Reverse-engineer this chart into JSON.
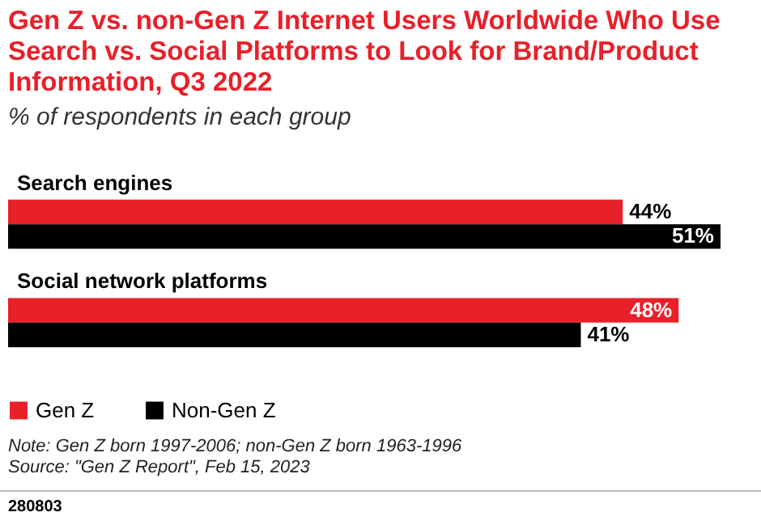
{
  "chart_data": {
    "type": "bar",
    "orientation": "horizontal",
    "title": "Gen Z vs. non-Gen Z Internet Users Worldwide Who Use Search vs. Social Platforms to Look for Brand/Product Information, Q3 2022",
    "subtitle": "% of respondents in each group",
    "categories": [
      "Search engines",
      "Social network platforms"
    ],
    "series": [
      {
        "name": "Gen Z",
        "color": "#e8202a",
        "values": [
          44,
          48
        ],
        "value_labels": [
          "44%",
          "48%"
        ]
      },
      {
        "name": "Non-Gen Z",
        "color": "#000000",
        "values": [
          51,
          41
        ],
        "value_labels": [
          "51%",
          "41%"
        ]
      }
    ],
    "legend": "bottom left",
    "annotations": [
      "Note: Gen Z born 1997-2006; non-Gen Z born 1963-1996",
      "Source: \"Gen Z Report\", Feb 15, 2023",
      "280803"
    ]
  }
}
